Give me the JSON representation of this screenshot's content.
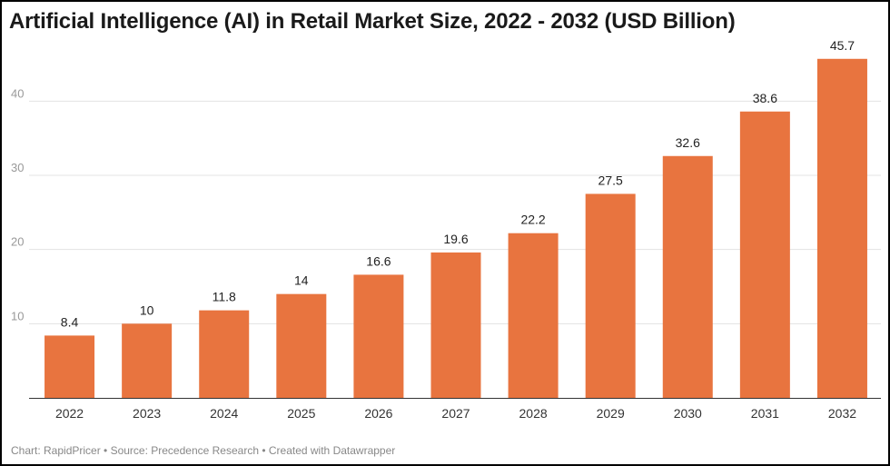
{
  "chart_data": {
    "type": "bar",
    "title": "Artificial Intelligence (AI) in Retail Market Size, 2022 - 2032 (USD Billion)",
    "categories": [
      "2022",
      "2023",
      "2024",
      "2025",
      "2026",
      "2027",
      "2028",
      "2029",
      "2030",
      "2031",
      "2032"
    ],
    "values": [
      8.4,
      10,
      11.8,
      14,
      16.6,
      19.6,
      22.2,
      27.5,
      32.6,
      38.6,
      45.7
    ],
    "value_labels": [
      "8.4",
      "10",
      "11.8",
      "14",
      "16.6",
      "19.6",
      "22.2",
      "27.5",
      "32.6",
      "38.6",
      "45.7"
    ],
    "yticks": [
      "10",
      "20",
      "30",
      "40"
    ],
    "ylim": [
      0,
      48
    ],
    "grid": true,
    "bar_color": "#e8743f",
    "footer": "Chart: RapidPricer • Source: Precedence Research • Created with Datawrapper"
  }
}
